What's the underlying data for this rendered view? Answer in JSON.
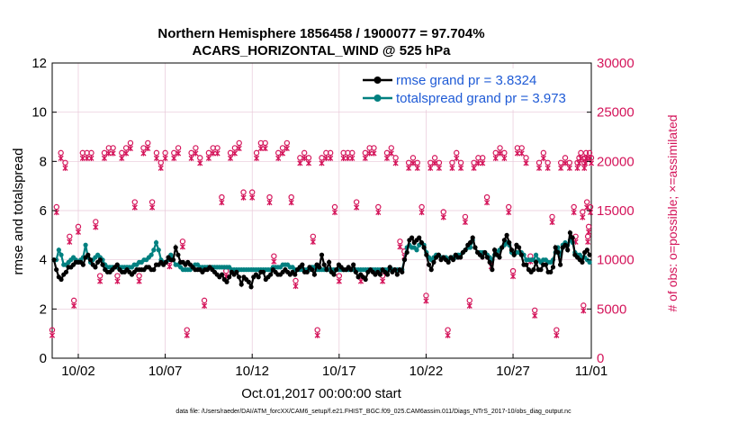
{
  "chart_data": {
    "type": "line",
    "title": "Northern Hemisphere 1856458 / 1900077 = 97.704%",
    "subtitle": "ACARS_HORIZONTAL_WIND @ 525 hPa",
    "xlabel": "Oct.01,2017 00:00:00 start",
    "ylabel_left": "rmse and totalspread",
    "ylabel_right": "# of obs: o=possible; ×=assimilated",
    "footer": "data file: /Users/raeder/DAI/ATM_forcXX/CAM6_setup/f.e21.FHIST_BGC.f09_025.CAM6assim.011/Diags_NTrS_2017-10/obs_diag_output.nc",
    "xlim": [
      0.5,
      31.5
    ],
    "ylim_left": [
      0,
      12
    ],
    "ylim_right": [
      0,
      30000
    ],
    "x_ticks": [
      {
        "label": "10/02",
        "x": 2
      },
      {
        "label": "10/07",
        "x": 7
      },
      {
        "label": "10/12",
        "x": 12
      },
      {
        "label": "10/17",
        "x": 17
      },
      {
        "label": "10/22",
        "x": 22
      },
      {
        "label": "10/27",
        "x": 27
      },
      {
        "label": "11/01",
        "x": 32
      }
    ],
    "y_ticks_left": [
      "0",
      "2",
      "4",
      "6",
      "8",
      "10",
      "12"
    ],
    "y_ticks_right": [
      "0",
      "5000",
      "10000",
      "15000",
      "20000",
      "25000",
      "30000"
    ],
    "grid": true,
    "legend_position": "top-right",
    "series": [
      {
        "name": "rmse grand pr = 3.8324",
        "color": "#000000",
        "axis": "left",
        "type": "line",
        "values": []
      },
      {
        "name": "totalspread grand pr = 3.973",
        "color": "#008080",
        "axis": "left",
        "type": "line",
        "values": []
      },
      {
        "axis": "right",
        "type": "scatter",
        "marker": "o",
        "color": "#d4145a",
        "values": []
      },
      {
        "axis": "right",
        "type": "scatter",
        "marker": "x",
        "color": "#d4145a",
        "values": []
      }
    ],
    "rmse_pattern": [
      4.0,
      3.6,
      3.3,
      3.2,
      3.4,
      3.5,
      3.7,
      3.7,
      3.8,
      3.9,
      3.9,
      3.9,
      3.8,
      4.1,
      4.2,
      4.0,
      3.8,
      3.7,
      3.9,
      4.0,
      3.8,
      3.6,
      3.5,
      3.5,
      3.6,
      3.7,
      3.8,
      3.6,
      3.5,
      3.5,
      3.6,
      3.5,
      3.4,
      3.5,
      3.6,
      3.6,
      3.6,
      3.6,
      3.7,
      3.7,
      3.6,
      3.6,
      3.8,
      3.8,
      3.9,
      3.8,
      3.9,
      4.1,
      4.0,
      4.0,
      4.5,
      4.2,
      3.9,
      3.9,
      3.8,
      3.9,
      3.8,
      3.7,
      3.6,
      3.6,
      3.6,
      3.5,
      3.6,
      3.6,
      3.7,
      3.6,
      3.5,
      3.4,
      3.3,
      3.4,
      3.2,
      3.1,
      3.3,
      3.5,
      3.4,
      3.5,
      3.3,
      3.0,
      3.3,
      3.2,
      3.1,
      2.9,
      3.3,
      3.4,
      3.3,
      3.5,
      3.5,
      3.2,
      3.3,
      3.4,
      3.6,
      3.5,
      3.4,
      3.4,
      3.5,
      3.6,
      3.5,
      3.4,
      3.5,
      3.4,
      3.6,
      3.7,
      3.8,
      3.5,
      3.5,
      3.7,
      3.6,
      3.4,
      3.8,
      3.7,
      4.2,
      3.8,
      3.6,
      3.9,
      3.5,
      3.4,
      3.6,
      3.8,
      3.7,
      3.6,
      3.6,
      3.7,
      3.6,
      3.8,
      3.5,
      3.3,
      3.4,
      3.3,
      3.2,
      3.5,
      3.6,
      3.5,
      3.4,
      3.5,
      3.4,
      3.6,
      3.5,
      3.4,
      3.7,
      3.5,
      3.6,
      3.4,
      3.6,
      3.5,
      4.0,
      4.3,
      4.8,
      4.9,
      4.7,
      4.8,
      4.9,
      4.7,
      4.5,
      4.2,
      3.8,
      3.6,
      3.9,
      4.1,
      4.2,
      4.0,
      4.1,
      4.0,
      3.9,
      4.1,
      4.0,
      4.2,
      4.1,
      4.1,
      4.3,
      4.4,
      4.6,
      4.7,
      4.9,
      4.5,
      4.3,
      4.2,
      4.1,
      4.3,
      4.1,
      3.9,
      3.6,
      4.4,
      4.2,
      4.1,
      4.5,
      4.8,
      5.0,
      4.7,
      4.4,
      4.2,
      4.6,
      4.5,
      4.2,
      3.8,
      3.8,
      3.6,
      3.5,
      3.6,
      3.9,
      3.6,
      3.6,
      3.8,
      3.8,
      3.5,
      3.5,
      3.7,
      4.5,
      4.3,
      3.8,
      4.5,
      4.6,
      4.4,
      5.1,
      4.9,
      4.2,
      4.1,
      4.0,
      3.9,
      4.3,
      4.4,
      4.2
    ],
    "spread_pattern": [
      4.0,
      4.0,
      4.4,
      4.2,
      3.8,
      3.8,
      3.9,
      4.0,
      4.1,
      4.0,
      3.9,
      4.0,
      4.1,
      4.6,
      4.1,
      3.9,
      4.0,
      4.1,
      4.2,
      4.1,
      4.0,
      3.8,
      3.7,
      3.7,
      3.7,
      3.7,
      3.7,
      3.7,
      3.7,
      3.7,
      3.7,
      3.7,
      3.7,
      3.8,
      3.8,
      3.9,
      3.9,
      4.0,
      4.0,
      4.1,
      4.2,
      4.4,
      4.7,
      4.4,
      4.0,
      3.9,
      3.9,
      4.0,
      4.2,
      4.0,
      3.8,
      3.8,
      3.7,
      3.6,
      3.6,
      3.6,
      3.6,
      3.7,
      3.8,
      3.8,
      3.7,
      3.7,
      3.7,
      3.7,
      3.7,
      3.7,
      3.7,
      3.7,
      3.7,
      3.7,
      3.7,
      3.7,
      3.7,
      3.6,
      3.6,
      3.6,
      3.6,
      3.6,
      3.6,
      3.6,
      3.6,
      3.6,
      3.6,
      3.6,
      3.6,
      3.6,
      3.6,
      3.6,
      3.6,
      3.6,
      3.7,
      3.7,
      3.7,
      3.7,
      3.8,
      3.8,
      3.8,
      3.7,
      3.7,
      3.6,
      3.6,
      3.6,
      3.6,
      3.6,
      3.6,
      3.6,
      3.7,
      3.7,
      3.6,
      3.6,
      3.6,
      3.6,
      3.6,
      3.6,
      3.6,
      3.6,
      3.6,
      3.6,
      3.6,
      3.6,
      3.6,
      3.6,
      3.6,
      3.6,
      3.6,
      3.6,
      3.6,
      3.6,
      3.6,
      3.6,
      3.6,
      3.6,
      3.6,
      3.6,
      3.6,
      3.6,
      3.6,
      3.6,
      3.6,
      3.6,
      3.6,
      3.6,
      3.6,
      3.6,
      4.0,
      4.5,
      4.6,
      4.5,
      4.5,
      4.4,
      4.6,
      4.7,
      4.6,
      4.3,
      4.1,
      4.0,
      4.1,
      4.2,
      4.2,
      4.1,
      4.1,
      4.1,
      4.0,
      4.1,
      4.1,
      4.1,
      4.2,
      4.2,
      4.3,
      4.4,
      4.5,
      4.5,
      4.8,
      4.5,
      4.3,
      4.3,
      4.3,
      4.3,
      4.2,
      4.1,
      4.0,
      4.2,
      4.3,
      4.4,
      4.5,
      4.6,
      4.7,
      4.6,
      4.3,
      4.2,
      4.3,
      4.3,
      4.3,
      4.2,
      4.0,
      4.0,
      4.0,
      4.0,
      4.2,
      4.0,
      3.9,
      4.0,
      4.0,
      3.9,
      3.9,
      4.0,
      4.3,
      4.5,
      4.2,
      4.6,
      4.7,
      4.6,
      4.8,
      4.7,
      4.3,
      4.2,
      4.2,
      4.1,
      4.1,
      4.0,
      3.9
    ],
    "obs_pattern": [
      2500,
      15000,
      20500,
      19500,
      12000,
      5500,
      13000,
      20500,
      20500,
      20500,
      13500,
      8000,
      20500,
      21000,
      21000,
      8000,
      20500,
      21000,
      21500,
      15500,
      8000,
      21000,
      21500,
      15500,
      20500,
      19500,
      20500,
      9500,
      20500,
      21000,
      11500,
      2500,
      20500,
      21000,
      20000,
      5500,
      20500,
      21000,
      21000,
      16000,
      8500,
      20500,
      21000,
      21500,
      16500,
      16500,
      20500,
      21500,
      21500,
      16000,
      10000,
      20500,
      21000,
      21500,
      16000,
      7500,
      20000,
      20500,
      20000,
      12000,
      2500,
      20000,
      20500,
      20500,
      15000,
      8000,
      20500,
      20500,
      20500,
      15500,
      8000,
      20500,
      21000,
      21000,
      15000,
      8000,
      20500,
      21000,
      20000,
      11500,
      10500,
      19500,
      20000,
      19500,
      15000,
      6000,
      19500,
      20000,
      19500,
      14500,
      2500,
      19500,
      20500,
      19500,
      14000,
      5500,
      19500,
      20000,
      20000,
      16000,
      9500,
      20500,
      21000,
      20500,
      15000,
      8500,
      21000,
      21000,
      20000,
      10000,
      4500,
      19500,
      20500,
      19500,
      14000,
      2500,
      19500,
      20000,
      19500,
      15000,
      12000,
      19500,
      20000,
      20500,
      14500,
      5000,
      19500,
      20000,
      20500,
      15500,
      12000,
      13000,
      20500,
      15000,
      20000,
      0
    ],
    "obs_x": [
      0.5,
      0.75,
      1.0,
      1.25,
      1.5,
      1.75,
      2.0,
      2.25,
      2.5,
      2.75,
      3.0,
      3.25,
      3.5,
      3.75,
      4.0,
      4.25,
      4.5,
      4.75,
      5.0,
      5.25,
      5.5,
      5.75,
      6.0,
      6.25,
      6.5,
      6.75,
      7.0,
      7.25,
      7.5,
      7.75,
      8.0,
      8.25,
      8.5,
      8.75,
      9.0,
      9.25,
      9.5,
      9.75,
      10.0,
      10.25,
      10.5,
      10.75,
      11.0,
      11.25,
      11.5,
      12.0,
      12.25,
      12.5,
      12.75,
      13.0,
      13.25,
      13.5,
      13.75,
      14.0,
      14.25,
      14.5,
      14.75,
      15.0,
      15.25,
      15.5,
      15.75,
      16.0,
      16.25,
      16.5,
      16.75,
      17.0,
      17.25,
      17.5,
      17.75,
      18.0,
      18.25,
      18.5,
      18.75,
      19.0,
      19.25,
      19.5,
      19.75,
      20.0,
      20.25,
      20.5,
      20.75,
      21.0,
      21.25,
      21.5,
      21.75,
      22.0,
      22.25,
      22.5,
      22.75,
      23.0,
      23.25,
      23.5,
      23.75,
      24.0,
      24.25,
      24.5,
      24.75,
      25.0,
      25.25,
      25.5,
      25.75,
      26.0,
      26.25,
      26.5,
      26.75,
      27.0,
      27.25,
      27.5,
      27.75,
      28.0,
      28.25,
      28.5,
      28.75,
      29.0,
      29.25,
      29.5,
      29.75,
      30.0,
      30.25,
      30.5,
      30.6,
      30.7,
      30.8,
      30.9,
      31.0,
      31.05,
      31.1,
      31.15,
      31.2,
      31.25,
      31.3,
      31.35,
      31.4,
      31.45,
      31.5,
      32.0
    ]
  }
}
